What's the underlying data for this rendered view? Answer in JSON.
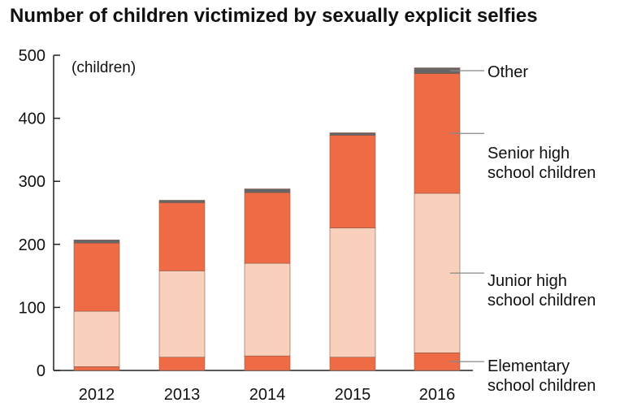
{
  "chart_data": {
    "type": "bar",
    "stacked": true,
    "title": "Number of children victimized by sexually explicit selfies",
    "unit_label": "(children)",
    "ylim": [
      0,
      500
    ],
    "yticks": [
      0,
      100,
      200,
      300,
      400,
      500
    ],
    "categories": [
      "2012",
      "2013",
      "2014",
      "2015",
      "2016"
    ],
    "grid": false,
    "legend": "right",
    "series": [
      {
        "name": "Elementary school children",
        "color": "#EE6B45",
        "values": [
          6,
          21,
          23,
          21,
          28
        ]
      },
      {
        "name": "Junior high school children",
        "color": "#F9D0BB",
        "values": [
          88,
          137,
          147,
          205,
          253
        ]
      },
      {
        "name": "Senior high school children",
        "color": "#EE6B45",
        "values": [
          108,
          108,
          112,
          147,
          190
        ]
      },
      {
        "name": "Other",
        "color": "#666666",
        "values": [
          5,
          4,
          6,
          4,
          9
        ]
      }
    ],
    "legend_labels": [
      {
        "lines": [
          "Other"
        ]
      },
      {
        "lines": [
          "Senior high",
          "school children"
        ]
      },
      {
        "lines": [
          "Junior high",
          "school children"
        ]
      },
      {
        "lines": [
          "Elementary",
          "school children"
        ]
      }
    ]
  }
}
